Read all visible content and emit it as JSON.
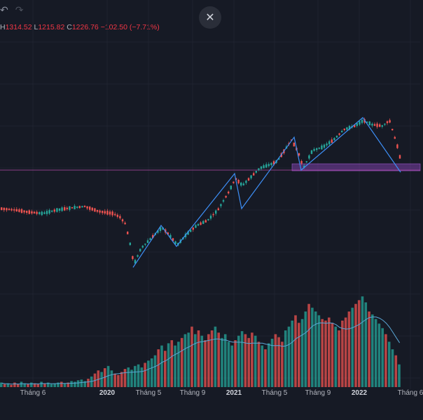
{
  "toolbar": {
    "undo_icon": "undo-icon",
    "redo_icon": "redo-icon"
  },
  "close_button": {
    "label": "✕",
    "icon": "close-icon"
  },
  "legend": {
    "h_label": "H",
    "h_value": "1314.52",
    "l_label": "L",
    "l_value": "1215.82",
    "c_label": "C",
    "c_value": "1226.76",
    "change": "−102.50 (−7.71%)"
  },
  "colors": {
    "background": "#161a25",
    "up": "#26a69a",
    "down": "#ef5350",
    "pattern": "#3d8ef5",
    "ma": "#5aa7d6",
    "zone": "#7b3fa8",
    "grid": "#1f2330"
  },
  "x_axis": {
    "labels": [
      "Tháng 6",
      "2020",
      "Tháng 5",
      "Tháng 9",
      "2021",
      "Tháng 5",
      "Tháng 9",
      "2022",
      "Tháng 6"
    ]
  },
  "chart_data": {
    "type": "candlestick",
    "price_path": [
      [
        0,
        298
      ],
      [
        20,
        300
      ],
      [
        40,
        303
      ],
      [
        60,
        305
      ],
      [
        80,
        300
      ],
      [
        100,
        297
      ],
      [
        120,
        295
      ],
      [
        140,
        302
      ],
      [
        160,
        305
      ],
      [
        170,
        310
      ],
      [
        178,
        320
      ],
      [
        185,
        350
      ],
      [
        190,
        378
      ],
      [
        200,
        355
      ],
      [
        215,
        340
      ],
      [
        230,
        325
      ],
      [
        240,
        335
      ],
      [
        252,
        350
      ],
      [
        265,
        335
      ],
      [
        280,
        322
      ],
      [
        295,
        315
      ],
      [
        310,
        300
      ],
      [
        325,
        275
      ],
      [
        335,
        255
      ],
      [
        345,
        265
      ],
      [
        355,
        255
      ],
      [
        370,
        240
      ],
      [
        385,
        235
      ],
      [
        395,
        230
      ],
      [
        405,
        215
      ],
      [
        415,
        200
      ],
      [
        425,
        218
      ],
      [
        432,
        240
      ],
      [
        445,
        215
      ],
      [
        460,
        210
      ],
      [
        475,
        200
      ],
      [
        490,
        185
      ],
      [
        505,
        180
      ],
      [
        518,
        172
      ],
      [
        530,
        178
      ],
      [
        545,
        180
      ],
      [
        555,
        172
      ],
      [
        562,
        195
      ],
      [
        568,
        215
      ],
      [
        573,
        240
      ]
    ],
    "pattern_lines": [
      [
        [
          190,
          382
        ],
        [
          230,
          322
        ],
        [
          252,
          352
        ],
        [
          335,
          248
        ],
        [
          345,
          298
        ],
        [
          420,
          196
        ],
        [
          430,
          243
        ],
        [
          518,
          168
        ],
        [
          572,
          246
        ]
      ]
    ],
    "volume": [
      6,
      4,
      5,
      3,
      6,
      4,
      7,
      5,
      4,
      6,
      5,
      4,
      7,
      5,
      6,
      4,
      5,
      6,
      7,
      5,
      6,
      8,
      7,
      9,
      10,
      8,
      11,
      14,
      18,
      22,
      20,
      25,
      28,
      22,
      18,
      16,
      20,
      24,
      26,
      23,
      28,
      30,
      26,
      32,
      35,
      38,
      42,
      50,
      55,
      48,
      58,
      62,
      55,
      60,
      65,
      70,
      72,
      80,
      70,
      75,
      68,
      62,
      70,
      75,
      80,
      72,
      65,
      70,
      60,
      55,
      62,
      68,
      74,
      70,
      65,
      72,
      68,
      60,
      55,
      50,
      58,
      64,
      70,
      66,
      60,
      75,
      80,
      88,
      95,
      85,
      90,
      100,
      110,
      105,
      100,
      95,
      90,
      88,
      92,
      85,
      80,
      75,
      88,
      92,
      100,
      105,
      110,
      115,
      120,
      112,
      100,
      96,
      90,
      84,
      78,
      70,
      60,
      50,
      42,
      30
    ]
  }
}
